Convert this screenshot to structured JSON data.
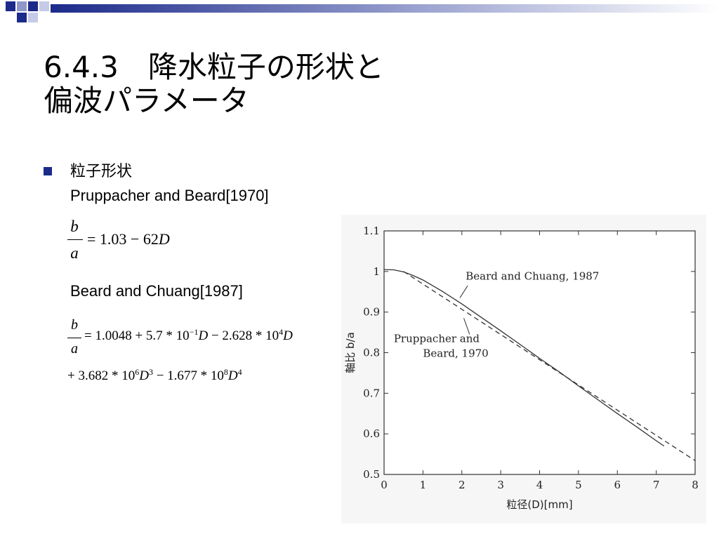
{
  "slide": {
    "title_line1": "6.4.3　降水粒子の形状と",
    "title_line2": "偏波パラメータ",
    "bullet_heading": "粒子形状",
    "ref1": "Pruppacher and Beard[1970]",
    "eq1_num": "b",
    "eq1_den": "a",
    "eq1_rhs": "= 1.03 − 62",
    "eq1_var": "D",
    "ref2": "Beard and Chuang[1987]",
    "eq2_num": "b",
    "eq2_den": "a",
    "eq2_line1_a": "= 1.0048 + 5.7 * 10",
    "eq2_line1_exp1": "−1",
    "eq2_line1_b": "D",
    "eq2_line1_c": " − 2.628 * 10",
    "eq2_line1_exp2": "4",
    "eq2_line1_d": "D",
    "eq2_line2_a": "+ 3.682 * 10",
    "eq2_line2_exp1": "6",
    "eq2_line2_b": "D",
    "eq2_line2_exp2": "3",
    "eq2_line2_c": " − 1.677 * 10",
    "eq2_line2_exp3": "8",
    "eq2_line2_d": "D",
    "eq2_line2_exp4": "4"
  },
  "colors": {
    "accent_dark": "#1c2a8a",
    "accent_mid": "#5e6bb0",
    "accent_light": "#b9c0e0"
  },
  "chart_data": {
    "type": "line",
    "xlabel": "粒径(D)[mm]",
    "ylabel": "軸比 b/a",
    "xlim": [
      0,
      8
    ],
    "ylim": [
      0.5,
      1.1
    ],
    "xticks": [
      "0",
      "1",
      "2",
      "3",
      "4",
      "5",
      "6",
      "7",
      "8"
    ],
    "yticks": [
      "0.5",
      "0.6",
      "0.7",
      "0.8",
      "0.9",
      "1",
      "1.1"
    ],
    "series": [
      {
        "name": "Beard and Chuang, 1987",
        "style": "solid",
        "x": [
          0,
          0.25,
          0.5,
          0.75,
          1,
          1.5,
          2,
          2.5,
          3,
          3.5,
          4,
          4.5,
          5,
          5.5,
          6,
          6.5,
          7,
          7.2
        ],
        "y": [
          1.0048,
          1.004,
          0.999,
          0.99,
          0.979,
          0.951,
          0.92,
          0.887,
          0.854,
          0.82,
          0.786,
          0.753,
          0.718,
          0.684,
          0.65,
          0.617,
          0.583,
          0.57
        ]
      },
      {
        "name": "Pruppacher and Beard, 1970",
        "style": "dashed",
        "x": [
          0.5,
          8
        ],
        "y": [
          1.0,
          0.534
        ]
      }
    ],
    "annotations": [
      "Beard and Chuang, 1987",
      "Pruppacher and",
      "Beard, 1970"
    ]
  }
}
